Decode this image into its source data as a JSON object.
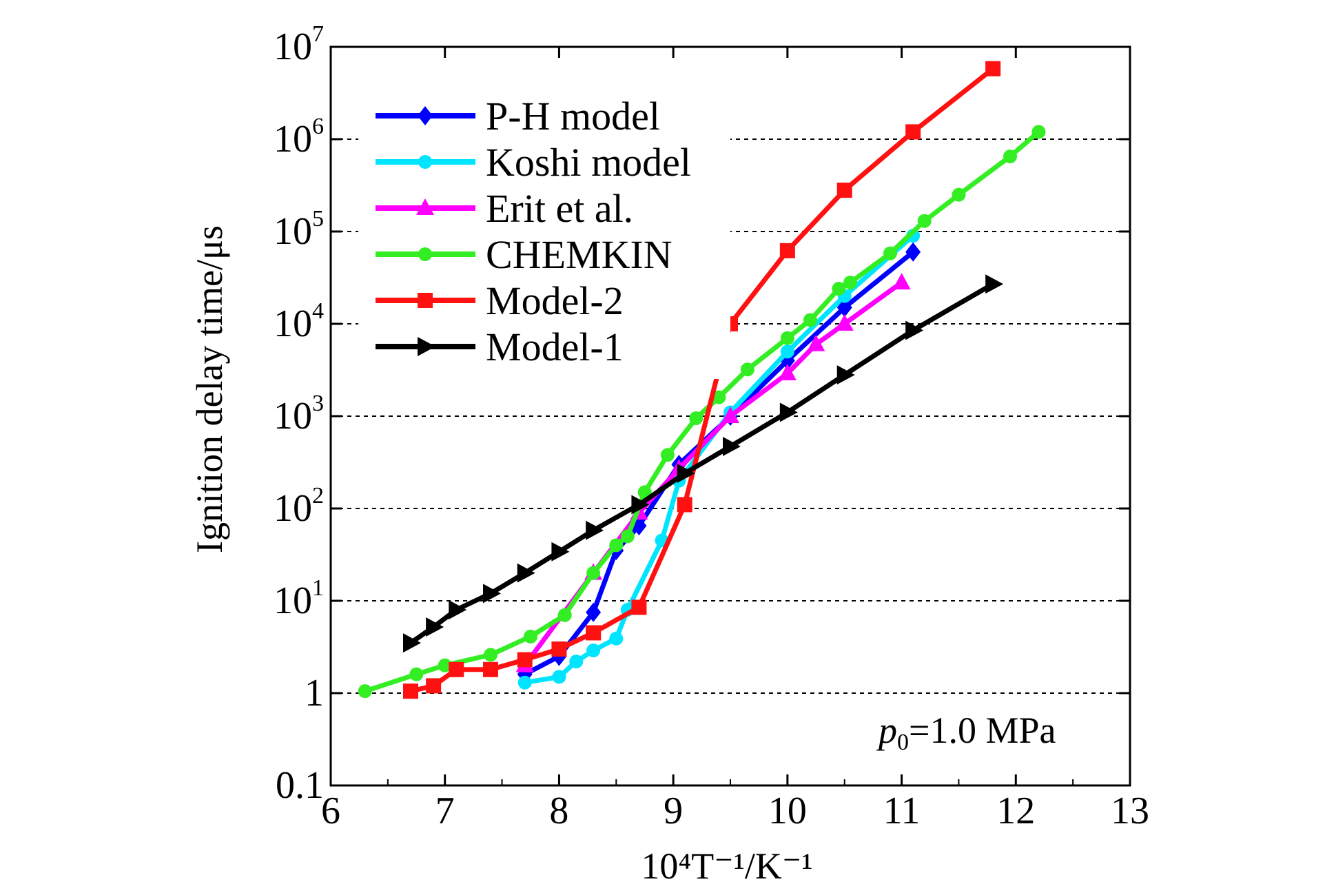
{
  "chart_data": {
    "type": "line",
    "xlabel": "10⁴T⁻¹/K⁻¹",
    "ylabel": "Ignition delay time/μs",
    "xlim": [
      6,
      13
    ],
    "ylim": [
      0.1,
      10000000
    ],
    "yscale": "log",
    "xticks": [
      6,
      7,
      8,
      9,
      10,
      11,
      12,
      13
    ],
    "yticks": [
      {
        "value": 0.1,
        "label": "0.1",
        "base": "",
        "exp": ""
      },
      {
        "value": 1,
        "label": "1",
        "base": "",
        "exp": ""
      },
      {
        "value": 10,
        "label": "",
        "base": "10",
        "exp": "1"
      },
      {
        "value": 100,
        "label": "",
        "base": "10",
        "exp": "2"
      },
      {
        "value": 1000,
        "label": "",
        "base": "10",
        "exp": "3"
      },
      {
        "value": 10000,
        "label": "",
        "base": "10",
        "exp": "4"
      },
      {
        "value": 100000,
        "label": "",
        "base": "10",
        "exp": "5"
      },
      {
        "value": 1000000,
        "label": "",
        "base": "10",
        "exp": "6"
      },
      {
        "value": 10000000,
        "label": "",
        "base": "10",
        "exp": "7"
      }
    ],
    "grid": "horizontal dashed at decades 1 to 10^6",
    "legend_position": "top-left",
    "annotation": {
      "italic": "p",
      "sub": "0",
      "rest": "=1.0 MPa"
    },
    "series": [
      {
        "name": "P-H model",
        "color": "#0000ff",
        "marker": "diamond",
        "x": [
          7.7,
          8.0,
          8.3,
          8.5,
          8.7,
          9.05,
          9.5,
          10.0,
          10.5,
          11.1
        ],
        "y": [
          1.6,
          2.5,
          7.5,
          35,
          65,
          300,
          1000,
          4000,
          15000,
          60000
        ]
      },
      {
        "name": "Koshi model",
        "color": "#00e5ff",
        "marker": "circle",
        "x": [
          7.7,
          8.0,
          8.15,
          8.3,
          8.5,
          8.6,
          8.9,
          9.05,
          9.5,
          10.0,
          10.5,
          11.1
        ],
        "y": [
          1.3,
          1.5,
          2.2,
          2.9,
          3.9,
          8,
          45,
          200,
          1100,
          5000,
          20000,
          90000
        ]
      },
      {
        "name": "Erit et al.",
        "color": "#ff00ff",
        "marker": "triangle",
        "x": [
          7.7,
          8.3,
          8.7,
          9.05,
          9.5,
          10.0,
          10.25,
          10.5,
          11.0
        ],
        "y": [
          2.0,
          20,
          90,
          270,
          1000,
          2900,
          6000,
          10000,
          28000
        ]
      },
      {
        "name": "CHEMKIN",
        "color": "#33ee22",
        "marker": "circle",
        "x": [
          6.3,
          6.75,
          7.0,
          7.4,
          7.75,
          8.05,
          8.3,
          8.5,
          8.6,
          8.75,
          8.95,
          9.2,
          9.4,
          9.65,
          10.0,
          10.2,
          10.45,
          10.55,
          10.9,
          11.2,
          11.5,
          11.95,
          12.2
        ],
        "y": [
          1.05,
          1.6,
          2.0,
          2.6,
          4.1,
          7,
          20,
          40,
          50,
          150,
          380,
          950,
          1600,
          3200,
          7000,
          11000,
          24000,
          28000,
          58000,
          130000,
          250000,
          650000,
          1200000
        ]
      },
      {
        "name": "Model-2",
        "color": "#ff1111",
        "marker": "square",
        "x": [
          6.7,
          6.9,
          7.1,
          7.4,
          7.7,
          8.0,
          8.3,
          8.7,
          9.1,
          9.5,
          10.0,
          10.5,
          11.1,
          11.8
        ],
        "y": [
          1.05,
          1.2,
          1.8,
          1.8,
          2.3,
          3.0,
          4.5,
          8.5,
          110,
          10000,
          62000,
          280000,
          1200000,
          5800000
        ]
      },
      {
        "name": "Model-1",
        "color": "#000000",
        "marker": "triangle-right",
        "x": [
          6.7,
          6.9,
          7.1,
          7.4,
          7.7,
          8.0,
          8.3,
          8.7,
          9.1,
          9.5,
          10.0,
          10.5,
          11.1,
          11.8
        ],
        "y": [
          3.5,
          5.2,
          8,
          12,
          20,
          34,
          58,
          110,
          240,
          470,
          1100,
          2800,
          8500,
          27000
        ]
      }
    ]
  }
}
